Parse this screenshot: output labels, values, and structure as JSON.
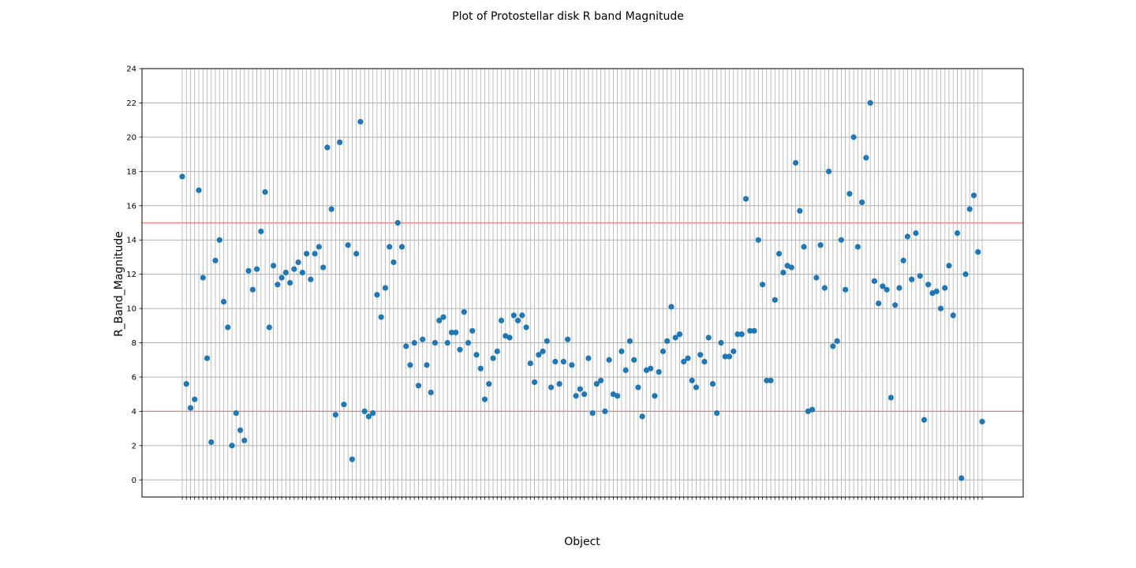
{
  "chart_data": {
    "type": "scatter",
    "title": "Plot of Protostellar disk R band Magnitude",
    "xlabel": "Object",
    "ylabel": "R_Band_Magnitude",
    "ylim": [
      -1,
      24
    ],
    "yticks": [
      0,
      2,
      4,
      6,
      8,
      10,
      12,
      14,
      16,
      18,
      20,
      22,
      24
    ],
    "grid": true,
    "reference_lines": [
      4,
      15
    ],
    "reference_line_color": "#f08080",
    "marker_color": "#1f77b4",
    "values": [
      17.7,
      5.6,
      4.2,
      4.7,
      16.9,
      11.8,
      7.1,
      2.2,
      12.8,
      14.0,
      10.4,
      8.9,
      2.0,
      3.9,
      2.9,
      2.3,
      12.2,
      11.1,
      12.3,
      14.5,
      16.8,
      8.9,
      12.5,
      11.4,
      11.8,
      12.1,
      11.5,
      12.3,
      12.7,
      12.1,
      13.2,
      11.7,
      13.2,
      13.6,
      12.4,
      19.4,
      15.8,
      3.8,
      19.7,
      4.4,
      13.7,
      1.2,
      13.2,
      20.9,
      4.0,
      3.7,
      3.9,
      10.8,
      9.5,
      11.2,
      13.6,
      12.7,
      15.0,
      13.6,
      7.8,
      6.7,
      8.0,
      5.5,
      8.2,
      6.7,
      5.1,
      8.0,
      9.3,
      9.5,
      8.0,
      8.6,
      8.6,
      7.6,
      9.8,
      8.0,
      8.7,
      7.3,
      6.5,
      4.7,
      5.6,
      7.1,
      7.5,
      9.3,
      8.4,
      8.3,
      9.6,
      9.3,
      9.6,
      8.9,
      6.8,
      5.7,
      7.3,
      7.5,
      8.1,
      5.4,
      6.9,
      5.6,
      6.9,
      8.2,
      6.7,
      4.9,
      5.3,
      5.0,
      7.1,
      3.9,
      5.6,
      5.8,
      4.0,
      7.0,
      5.0,
      4.9,
      7.5,
      6.4,
      8.1,
      7.0,
      5.4,
      3.7,
      6.4,
      6.5,
      4.9,
      6.3,
      7.5,
      8.1,
      10.1,
      8.3,
      8.5,
      6.9,
      7.1,
      5.8,
      5.4,
      7.3,
      6.9,
      8.3,
      5.6,
      3.9,
      8.0,
      7.2,
      7.2,
      7.5,
      8.5,
      8.5,
      16.4,
      8.7,
      8.7,
      14.0,
      11.4,
      5.8,
      5.8,
      10.5,
      13.2,
      12.1,
      12.5,
      12.4,
      18.5,
      15.7,
      13.6,
      4.0,
      4.1,
      11.8,
      13.7,
      11.2,
      18.0,
      7.8,
      8.1,
      14.0,
      11.1,
      16.7,
      20.0,
      13.6,
      16.2,
      18.8,
      22.0,
      11.6,
      10.3,
      11.3,
      11.1,
      4.8,
      10.2,
      11.2,
      12.8,
      14.2,
      11.7,
      14.4,
      11.9,
      3.5,
      11.4,
      10.9,
      11.0,
      10.0,
      11.2,
      12.5,
      9.6,
      14.4,
      0.1,
      12.0,
      15.8,
      16.6,
      13.3,
      3.4
    ]
  }
}
